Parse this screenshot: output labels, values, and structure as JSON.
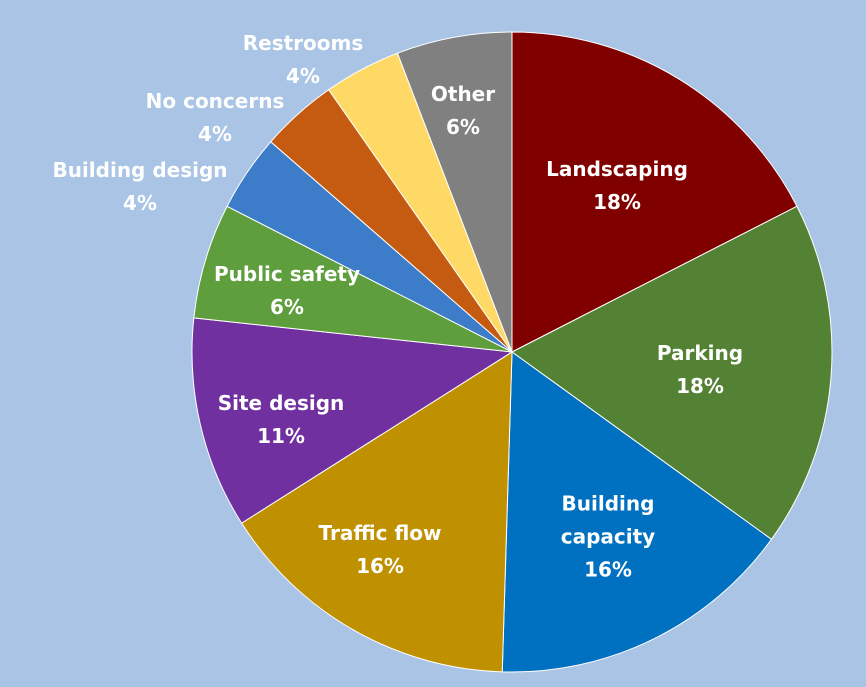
{
  "chart_data": {
    "type": "pie",
    "categories": [
      "Landscaping",
      "Parking",
      "Building capacity",
      "Traffic flow",
      "Site design",
      "Public safety",
      "Building design",
      "No  concerns",
      "Restrooms",
      "Other"
    ],
    "values": [
      18,
      18,
      16,
      16,
      11,
      6,
      4,
      4,
      4,
      6
    ],
    "value_labels": [
      "18%",
      "18%",
      "16%",
      "16%",
      "11%",
      "6%",
      "4%",
      "4%",
      "4%",
      "6%"
    ],
    "colors": [
      "#800000",
      "#548235",
      "#0070c0",
      "#bf9000",
      "#7030a0",
      "#5e9e3c",
      "#3d7cc9",
      "#c55a11",
      "#ffd966",
      "#808080"
    ]
  }
}
